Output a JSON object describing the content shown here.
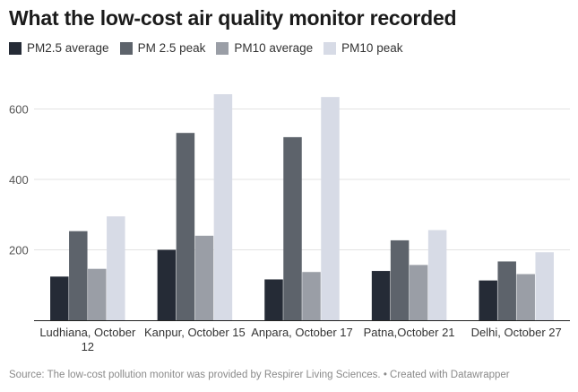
{
  "chart_data": {
    "type": "bar",
    "title": "What the low-cost air quality monitor recorded",
    "categories": [
      "Ludhiana, October 12",
      "Kanpur, October 15",
      "Anpara, October 17",
      "Patna,October 21",
      "Delhi, October 27"
    ],
    "category_lines": [
      [
        "Ludhiana, October",
        "12"
      ],
      [
        "Kanpur, October 15"
      ],
      [
        "Anpara, October 17"
      ],
      [
        "Patna,October 21"
      ],
      [
        "Delhi, October 27"
      ]
    ],
    "series": [
      {
        "name": "PM2.5 average",
        "color": "#252b36",
        "values": [
          124,
          200,
          116,
          140,
          113
        ]
      },
      {
        "name": "PM 2.5 peak",
        "color": "#5d636b",
        "values": [
          253,
          532,
          520,
          227,
          167
        ]
      },
      {
        "name": "PM10 average",
        "color": "#9a9ea6",
        "values": [
          146,
          240,
          137,
          157,
          131
        ]
      },
      {
        "name": "PM10 peak",
        "color": "#d7dbe6",
        "values": [
          295,
          642,
          634,
          256,
          193
        ]
      }
    ],
    "yticks": [
      200,
      400,
      600
    ],
    "ylim": [
      0,
      660
    ],
    "xlabel": "",
    "ylabel": "",
    "legend_position": "top-left",
    "grid": true
  },
  "footer": {
    "source": "Source: The low-cost pollution monitor was provided by Respirer Living Sciences. • Created with Datawrapper"
  }
}
